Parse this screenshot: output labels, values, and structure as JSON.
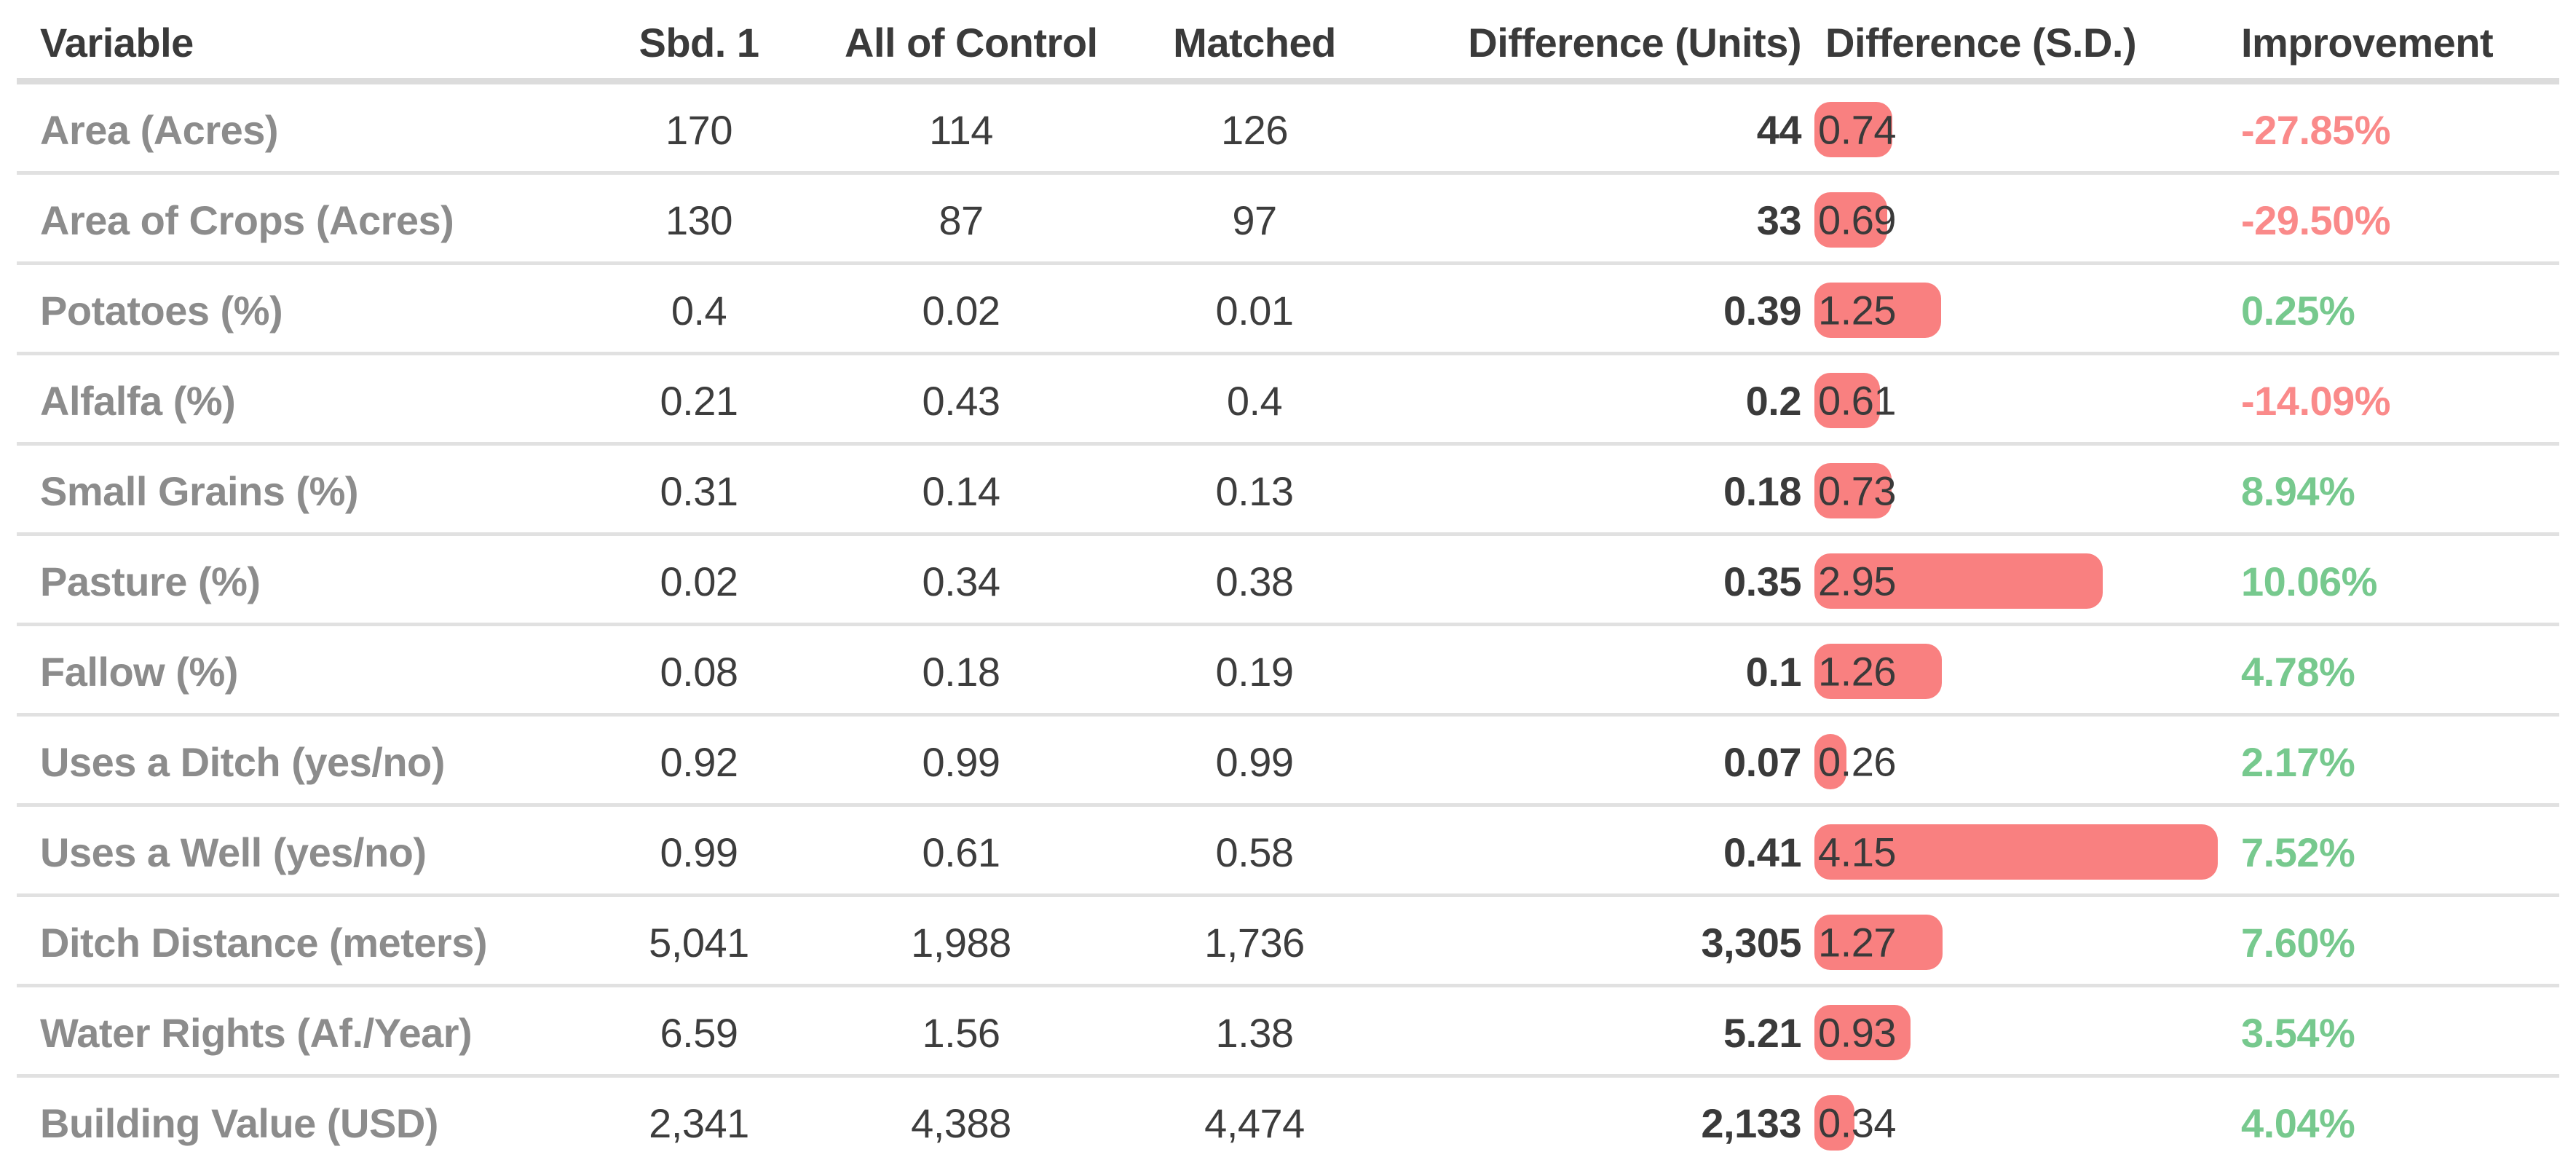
{
  "colors": {
    "sd_bar": "#f98080",
    "improvement_positive": "#77c98e",
    "improvement_negative": "#fa8a8a",
    "row_label": "#8c8c8c",
    "value_text": "#3d3d3d",
    "divider": "#e1e1e1",
    "header_divider": "#dcdcdc"
  },
  "chart_data": {
    "type": "table",
    "title": "",
    "columns": [
      "Variable",
      "Sbd. 1",
      "All of Control",
      "Matched",
      "Difference (Units)",
      "Difference (S.D.)",
      "Improvement"
    ],
    "sd_bar_note": "Difference (S.D.) cells show a rounded red bar whose width is proportional to the S.D. value",
    "rows": [
      {
        "variable": "Area (Acres)",
        "sbd1": "170",
        "all_of_control": "114",
        "matched": "126",
        "difference_units": "44",
        "difference_sd": 0.74,
        "difference_sd_label": "0.74",
        "improvement": "-27.85%",
        "improvement_trend": "negative"
      },
      {
        "variable": "Area of Crops (Acres)",
        "sbd1": "130",
        "all_of_control": "87",
        "matched": "97",
        "difference_units": "33",
        "difference_sd": 0.69,
        "difference_sd_label": "0.69",
        "improvement": "-29.50%",
        "improvement_trend": "negative"
      },
      {
        "variable": "Potatoes (%)",
        "sbd1": "0.4",
        "all_of_control": "0.02",
        "matched": "0.01",
        "difference_units": "0.39",
        "difference_sd": 1.25,
        "difference_sd_label": "1.25",
        "improvement": "0.25%",
        "improvement_trend": "positive"
      },
      {
        "variable": "Alfalfa (%)",
        "sbd1": "0.21",
        "all_of_control": "0.43",
        "matched": "0.4",
        "difference_units": "0.2",
        "difference_sd": 0.61,
        "difference_sd_label": "0.61",
        "improvement": "-14.09%",
        "improvement_trend": "negative"
      },
      {
        "variable": "Small Grains (%)",
        "sbd1": "0.31",
        "all_of_control": "0.14",
        "matched": "0.13",
        "difference_units": "0.18",
        "difference_sd": 0.73,
        "difference_sd_label": "0.73",
        "improvement": "8.94%",
        "improvement_trend": "positive"
      },
      {
        "variable": "Pasture (%)",
        "sbd1": "0.02",
        "all_of_control": "0.34",
        "matched": "0.38",
        "difference_units": "0.35",
        "difference_sd": 2.95,
        "difference_sd_label": "2.95",
        "improvement": "10.06%",
        "improvement_trend": "positive"
      },
      {
        "variable": "Fallow (%)",
        "sbd1": "0.08",
        "all_of_control": "0.18",
        "matched": "0.19",
        "difference_units": "0.1",
        "difference_sd": 1.26,
        "difference_sd_label": "1.26",
        "improvement": "4.78%",
        "improvement_trend": "positive"
      },
      {
        "variable": "Uses a Ditch (yes/no)",
        "sbd1": "0.92",
        "all_of_control": "0.99",
        "matched": "0.99",
        "difference_units": "0.07",
        "difference_sd": 0.26,
        "difference_sd_label": "0.26",
        "improvement": "2.17%",
        "improvement_trend": "positive"
      },
      {
        "variable": "Uses a Well (yes/no)",
        "sbd1": "0.99",
        "all_of_control": "0.61",
        "matched": "0.58",
        "difference_units": "0.41",
        "difference_sd": 4.15,
        "difference_sd_label": "4.15",
        "improvement": "7.52%",
        "improvement_trend": "positive"
      },
      {
        "variable": "Ditch Distance (meters)",
        "sbd1": "5,041",
        "all_of_control": "1,988",
        "matched": "1,736",
        "difference_units": "3,305",
        "difference_sd": 1.27,
        "difference_sd_label": "1.27",
        "improvement": "7.60%",
        "improvement_trend": "positive"
      },
      {
        "variable": "Water Rights (Af./Year)",
        "sbd1": "6.59",
        "all_of_control": "1.56",
        "matched": "1.38",
        "difference_units": "5.21",
        "difference_sd": 0.93,
        "difference_sd_label": "0.93",
        "improvement": "3.54%",
        "improvement_trend": "positive"
      },
      {
        "variable": "Building Value (USD)",
        "sbd1": "2,341",
        "all_of_control": "4,388",
        "matched": "4,474",
        "difference_units": "2,133",
        "difference_sd": 0.34,
        "difference_sd_label": "0.34",
        "improvement": "4.04%",
        "improvement_trend": "positive"
      }
    ]
  }
}
